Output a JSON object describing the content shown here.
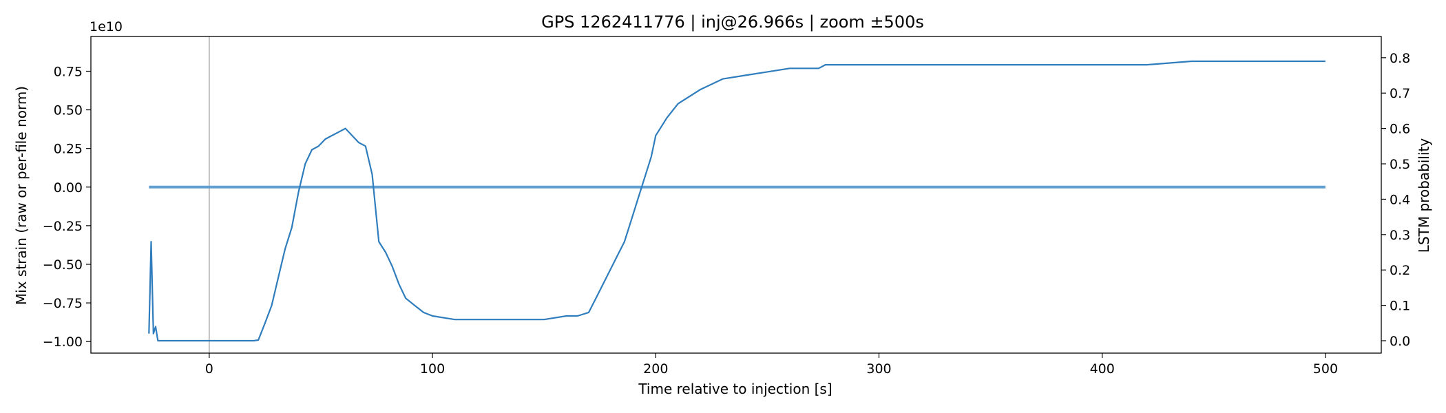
{
  "chart_data": {
    "type": "line",
    "title": "GPS 1262411776 | inj@26.966s | zoom ±500s",
    "xlabel": "Time relative to injection [s]",
    "ylabel": "Mix strain (raw or per-file norm)",
    "y2label": "LSTM probability",
    "y_offset_label": "1e10",
    "xlim": [
      -53,
      525
    ],
    "ylim": [
      -1.075,
      0.975
    ],
    "y2lim": [
      -0.035,
      0.86
    ],
    "x_ticks": [
      0,
      100,
      200,
      300,
      400,
      500
    ],
    "x_tick_labels": [
      "0",
      "100",
      "200",
      "300",
      "400",
      "500"
    ],
    "y_ticks": [
      0.75,
      0.5,
      0.25,
      0.0,
      -0.25,
      -0.5,
      -0.75,
      -1.0
    ],
    "y_tick_labels": [
      "0.75",
      "0.50",
      "0.25",
      "0.00",
      "−0.25",
      "−0.50",
      "−0.75",
      "−1.00"
    ],
    "y2_ticks": [
      0.8,
      0.7,
      0.6,
      0.5,
      0.4,
      0.3,
      0.2,
      0.1,
      0.0
    ],
    "y2_tick_labels": [
      "0.8",
      "0.7",
      "0.6",
      "0.5",
      "0.4",
      "0.3",
      "0.2",
      "0.1",
      "0.0"
    ],
    "grid": false,
    "injection_marker_x": 0,
    "colors": {
      "strain": "#5b9bd0",
      "probability": "#2f7dbd",
      "marker": "#b0b0b0",
      "axes": "#000000"
    },
    "series": [
      {
        "axis": "right",
        "x": [
          -27,
          -26,
          -25,
          -24,
          -23,
          -22,
          -21,
          -20,
          -15,
          -10,
          0,
          10,
          20,
          22,
          25,
          28,
          31,
          34,
          37,
          40,
          43,
          46,
          49,
          52,
          55,
          58,
          61,
          64,
          67,
          70,
          73,
          76,
          79,
          82,
          85,
          88,
          92,
          96,
          100,
          110,
          120,
          130,
          140,
          150,
          160,
          165,
          170,
          174,
          178,
          182,
          186,
          190,
          192,
          194,
          196,
          198,
          200,
          205,
          210,
          220,
          230,
          240,
          250,
          260,
          270,
          273,
          276,
          285,
          300,
          320,
          340,
          360,
          370,
          374,
          378,
          400,
          420,
          440,
          455,
          470,
          480,
          490,
          495,
          500
        ],
        "y": [
          0.02,
          0.28,
          0.02,
          0.04,
          0.0,
          0.0,
          0.0,
          0.0,
          0.0,
          0.0,
          0.0,
          0.0,
          0.0,
          0.002,
          0.05,
          0.1,
          0.18,
          0.26,
          0.32,
          0.42,
          0.5,
          0.54,
          0.55,
          0.57,
          0.58,
          0.59,
          0.6,
          0.58,
          0.56,
          0.55,
          0.47,
          0.28,
          0.25,
          0.21,
          0.16,
          0.12,
          0.1,
          0.08,
          0.07,
          0.06,
          0.06,
          0.06,
          0.06,
          0.06,
          0.07,
          0.07,
          0.08,
          0.13,
          0.18,
          0.23,
          0.28,
          0.36,
          0.4,
          0.44,
          0.48,
          0.52,
          0.58,
          0.63,
          0.67,
          0.71,
          0.74,
          0.75,
          0.76,
          0.77,
          0.77,
          0.77,
          0.78,
          0.78,
          0.78,
          0.78,
          0.78,
          0.78,
          0.78,
          0.78,
          0.78,
          0.78,
          0.78,
          0.79,
          0.79,
          0.79,
          0.79,
          0.79,
          0.79,
          0.79
        ]
      },
      {
        "axis": "left",
        "x": [
          -27,
          -22,
          -15,
          -5,
          0,
          5,
          10,
          15,
          25,
          50,
          100,
          150,
          200,
          300,
          400,
          500
        ],
        "y": [
          0.0,
          0.0,
          0.0,
          0.0,
          0.0,
          0.0,
          0.0,
          0.0,
          0.0,
          0.0,
          0.0,
          0.0,
          0.0,
          0.0,
          0.0,
          0.0
        ]
      }
    ]
  }
}
